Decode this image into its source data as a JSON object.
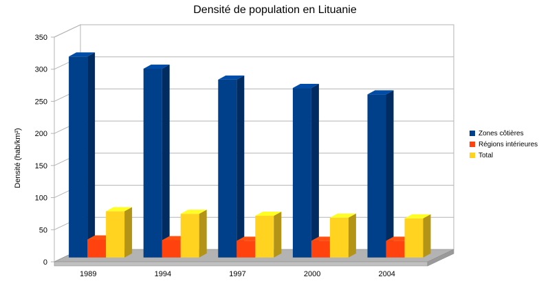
{
  "chart_data": {
    "type": "bar",
    "title": "Densité de population en Lituanie",
    "xlabel": "",
    "ylabel": "Densité (hab/km²)",
    "categories": [
      "1989",
      "1994",
      "1997",
      "2000",
      "2004"
    ],
    "series": [
      {
        "name": "Zones côtières",
        "values": [
          313,
          294,
          277,
          264,
          254
        ],
        "color": "#003f8a"
      },
      {
        "name": "Régions intérieures",
        "values": [
          28,
          27,
          26,
          26,
          26
        ],
        "color": "#ff420e"
      },
      {
        "name": "Total",
        "values": [
          72,
          68,
          65,
          62,
          61
        ],
        "color": "#ffd320"
      }
    ],
    "ylim": [
      0,
      350
    ],
    "yticks": [
      "0",
      "50",
      "100",
      "150",
      "200",
      "250",
      "300",
      "350"
    ],
    "grid": true,
    "legend_position": "right",
    "style": "3d-bar"
  }
}
